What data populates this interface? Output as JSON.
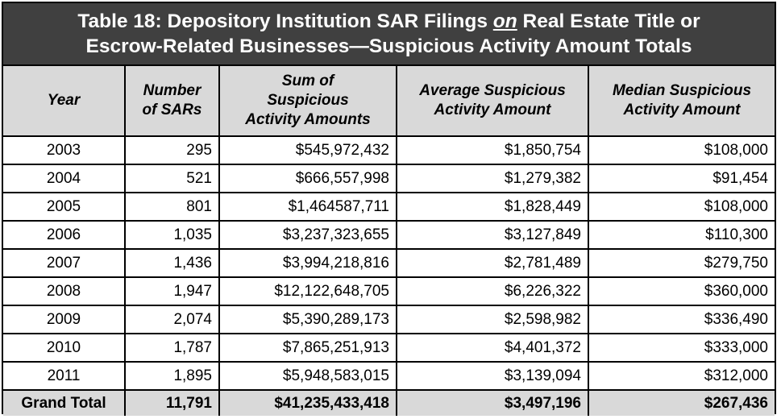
{
  "title": {
    "line1_prefix": "Table 18:  Depository Institution SAR Filings ",
    "line1_emph": "on",
    "line1_suffix": " Real Estate Title or",
    "line2": "Escrow-Related Businesses—Suspicious Activity Amount Totals"
  },
  "headers": {
    "year": "Year",
    "sars_1": "Number",
    "sars_2": "of SARs",
    "sum_1": "Sum of",
    "sum_2": "Suspicious",
    "sum_3": "Activity Amounts",
    "avg_1": "Average Suspicious",
    "avg_2": "Activity Amount",
    "med_1": "Median Suspicious",
    "med_2": "Activity Amount"
  },
  "rows": [
    {
      "year": "2003",
      "sars": "295",
      "sum": "$545,972,432",
      "avg": "$1,850,754",
      "median": "$108,000"
    },
    {
      "year": "2004",
      "sars": "521",
      "sum": "$666,557,998",
      "avg": "$1,279,382",
      "median": "$91,454"
    },
    {
      "year": "2005",
      "sars": "801",
      "sum": "$1,464587,711",
      "avg": "$1,828,449",
      "median": "$108,000"
    },
    {
      "year": "2006",
      "sars": "1,035",
      "sum": "$3,237,323,655",
      "avg": "$3,127,849",
      "median": "$110,300"
    },
    {
      "year": "2007",
      "sars": "1,436",
      "sum": "$3,994,218,816",
      "avg": "$2,781,489",
      "median": "$279,750"
    },
    {
      "year": "2008",
      "sars": "1,947",
      "sum": "$12,122,648,705",
      "avg": "$6,226,322",
      "median": "$360,000"
    },
    {
      "year": "2009",
      "sars": "2,074",
      "sum": "$5,390,289,173",
      "avg": "$2,598,982",
      "median": "$336,490"
    },
    {
      "year": "2010",
      "sars": "1,787",
      "sum": "$7,865,251,913",
      "avg": "$4,401,372",
      "median": "$333,000"
    },
    {
      "year": "2011",
      "sars": "1,895",
      "sum": "$5,948,583,015",
      "avg": "$3,139,094",
      "median": "$312,000"
    }
  ],
  "total": {
    "label": "Grand Total",
    "sars": "11,791",
    "sum": "$41,235,433,418",
    "avg": "$3,497,196",
    "median": "$267,436"
  }
}
